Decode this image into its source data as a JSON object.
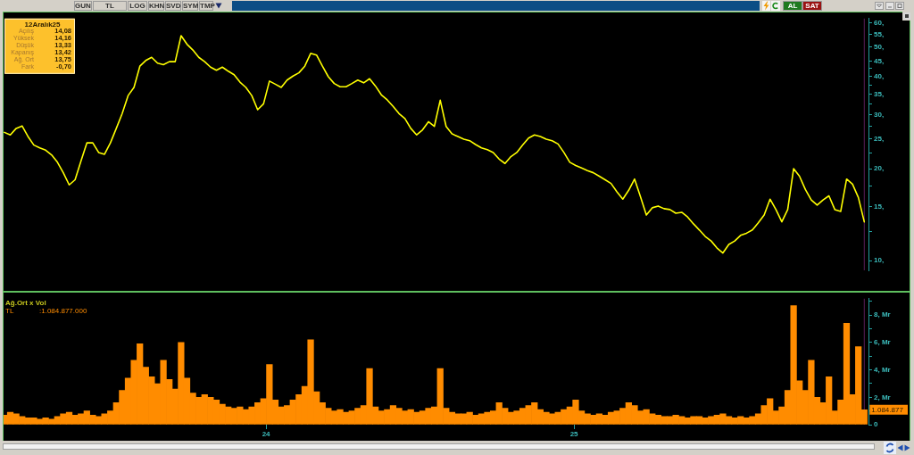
{
  "chart_data": [
    {
      "type": "other",
      "annotations": [
        "GUN",
        "TL",
        "LOG",
        "KHN",
        "SVD",
        "SYM",
        "TMP",
        "AL",
        "SAT"
      ],
      "colors": [
        "#d4d0c8",
        "#d4d0c8",
        "#d4d0c8",
        "#d4d0c8",
        "#d4d0c8",
        "#d4d0c8",
        "#d4d0c8",
        "#1f7a1f",
        "#9a1212"
      ]
    },
    {
      "type": "line",
      "color": "#ffff00",
      "log": true,
      "tick_labels": "y",
      "xlim": [
        "2023-02-23",
        "2025-12-17"
      ],
      "ylim": [
        9.3,
        62
      ],
      "yticks": [
        {
          "value": 10,
          "label": "10,"
        },
        {
          "value": 12.5,
          "label": null
        },
        {
          "value": 15,
          "label": "15,"
        },
        {
          "value": 17.5,
          "label": null
        },
        {
          "value": 20,
          "label": "20,"
        },
        {
          "value": 22.5,
          "label": null
        },
        {
          "value": 25,
          "label": "25,"
        },
        {
          "value": 27.5,
          "label": null
        },
        {
          "value": 30,
          "label": "30,"
        },
        {
          "value": 32.5,
          "label": null
        },
        {
          "value": 35,
          "label": "35,"
        },
        {
          "value": 37.5,
          "label": null
        },
        {
          "value": 40,
          "label": "40,"
        },
        {
          "value": 42.5,
          "label": null
        },
        {
          "value": 45,
          "label": "45,"
        },
        {
          "value": 50,
          "label": "50,"
        },
        {
          "value": 55,
          "label": "55,"
        },
        {
          "value": 60,
          "label": "60,"
        }
      ],
      "ref_lines": [
        {
          "axis": "x",
          "value": "2025-12-12",
          "color": "#5a1e5a"
        }
      ],
      "annotations": [
        "12Aralık25",
        "Açılış",
        "14,08",
        "Yüksek",
        "14,16",
        "Düşük",
        "13,33",
        "Kapanış",
        "13,42",
        "Ağ. Ort",
        "13,75",
        "Fark",
        "-0,70"
      ],
      "x": [
        "2023-02-24",
        "2023-03-03",
        "2023-03-10",
        "2023-03-17",
        "2023-03-24",
        "2023-03-31",
        "2023-04-07",
        "2023-04-14",
        "2023-04-21",
        "2023-04-28",
        "2023-05-05",
        "2023-05-12",
        "2023-05-19",
        "2023-05-26",
        "2023-06-02",
        "2023-06-09",
        "2023-06-16",
        "2023-06-23",
        "2023-06-30",
        "2023-07-07",
        "2023-07-14",
        "2023-07-21",
        "2023-07-28",
        "2023-08-04",
        "2023-08-11",
        "2023-08-18",
        "2023-08-25",
        "2023-09-01",
        "2023-09-08",
        "2023-09-15",
        "2023-09-22",
        "2023-09-29",
        "2023-10-06",
        "2023-10-13",
        "2023-10-20",
        "2023-10-27",
        "2023-11-03",
        "2023-11-10",
        "2023-11-17",
        "2023-11-24",
        "2023-12-01",
        "2023-12-08",
        "2023-12-15",
        "2023-12-22",
        "2023-12-29",
        "2024-01-05",
        "2024-01-12",
        "2024-01-19",
        "2024-01-26",
        "2024-02-02",
        "2024-02-09",
        "2024-02-16",
        "2024-02-23",
        "2024-03-01",
        "2024-03-08",
        "2024-03-15",
        "2024-03-22",
        "2024-03-29",
        "2024-04-05",
        "2024-04-12",
        "2024-04-19",
        "2024-04-26",
        "2024-05-03",
        "2024-05-10",
        "2024-05-17",
        "2024-05-24",
        "2024-05-31",
        "2024-06-07",
        "2024-06-14",
        "2024-06-21",
        "2024-06-28",
        "2024-07-05",
        "2024-07-12",
        "2024-07-19",
        "2024-07-26",
        "2024-08-02",
        "2024-08-09",
        "2024-08-16",
        "2024-08-23",
        "2024-08-30",
        "2024-09-06",
        "2024-09-13",
        "2024-09-20",
        "2024-09-27",
        "2024-10-04",
        "2024-10-11",
        "2024-10-18",
        "2024-10-25",
        "2024-11-01",
        "2024-11-08",
        "2024-11-15",
        "2024-11-22",
        "2024-11-29",
        "2024-12-06",
        "2024-12-13",
        "2024-12-20",
        "2024-12-27",
        "2025-01-03",
        "2025-01-10",
        "2025-01-17",
        "2025-01-24",
        "2025-01-31",
        "2025-02-07",
        "2025-02-14",
        "2025-02-21",
        "2025-02-28",
        "2025-03-07",
        "2025-03-14",
        "2025-03-21",
        "2025-03-28",
        "2025-04-04",
        "2025-04-11",
        "2025-04-18",
        "2025-04-25",
        "2025-05-02",
        "2025-05-09",
        "2025-05-16",
        "2025-05-23",
        "2025-05-30",
        "2025-06-06",
        "2025-06-13",
        "2025-06-20",
        "2025-06-27",
        "2025-07-04",
        "2025-07-11",
        "2025-07-18",
        "2025-07-25",
        "2025-08-01",
        "2025-08-08",
        "2025-08-15",
        "2025-08-22",
        "2025-08-29",
        "2025-09-05",
        "2025-09-12",
        "2025-09-19",
        "2025-09-26",
        "2025-10-03",
        "2025-10-10",
        "2025-10-17",
        "2025-10-24",
        "2025-10-31",
        "2025-11-07",
        "2025-11-14",
        "2025-11-21",
        "2025-11-28",
        "2025-12-05",
        "2025-12-12"
      ],
      "values": [
        26.3,
        25.8,
        27.1,
        27.6,
        25.5,
        23.9,
        23.4,
        23.0,
        22.2,
        21.0,
        19.4,
        17.7,
        18.4,
        21.2,
        24.3,
        24.3,
        22.6,
        22.3,
        24.3,
        27.1,
        30.3,
        34.7,
        36.9,
        43.3,
        45.2,
        46.3,
        44.3,
        43.8,
        44.8,
        44.8,
        54.5,
        51.1,
        48.9,
        46.3,
        44.8,
        43.0,
        42.0,
        43.0,
        41.7,
        40.6,
        38.4,
        36.9,
        34.7,
        31.2,
        32.6,
        38.7,
        37.8,
        36.9,
        39.0,
        40.2,
        41.2,
        43.3,
        47.7,
        47.1,
        43.3,
        40.0,
        38.0,
        37.1,
        37.1,
        38.0,
        39.0,
        38.2,
        39.4,
        37.3,
        34.9,
        33.6,
        32.0,
        30.3,
        29.2,
        27.1,
        25.8,
        26.8,
        28.5,
        27.5,
        33.5,
        27.5,
        26.0,
        25.5,
        25.0,
        24.7,
        24.0,
        23.4,
        23.1,
        22.6,
        21.5,
        20.8,
        21.9,
        22.6,
        23.9,
        25.2,
        25.8,
        25.5,
        25.0,
        24.7,
        24.1,
        22.6,
        21.0,
        20.5,
        20.1,
        19.7,
        19.4,
        18.9,
        18.4,
        17.9,
        16.8,
        15.9,
        17.0,
        18.5,
        16.2,
        14.1,
        14.9,
        15.1,
        14.8,
        14.7,
        14.3,
        14.4,
        13.9,
        13.2,
        12.6,
        12.0,
        11.6,
        11.0,
        10.6,
        11.3,
        11.6,
        12.1,
        12.3,
        12.6,
        13.3,
        14.1,
        15.9,
        14.7,
        13.4,
        14.7,
        20.0,
        18.9,
        17.1,
        15.8,
        15.2,
        15.8,
        16.3,
        14.7,
        14.5,
        18.5,
        17.8,
        16.1,
        13.4
      ]
    },
    {
      "type": "bar",
      "title": "Ağ.Ort x Vol",
      "color": "#ff8c00",
      "xlim": [
        "2023-02-23",
        "2025-12-17"
      ],
      "ylim": [
        0,
        9.2
      ],
      "xticks": [
        {
          "value": "2024-01-01",
          "label": "24"
        },
        {
          "value": "2025-01-01",
          "label": "25"
        }
      ],
      "yticks": [
        0,
        {
          "value": 1,
          "label": null
        },
        {
          "value": 2,
          "label": "2, Mr"
        },
        {
          "value": 3,
          "label": null
        },
        {
          "value": 4,
          "label": "4, Mr"
        },
        {
          "value": 5,
          "label": null
        },
        {
          "value": 6,
          "label": "6, Mr"
        },
        {
          "value": 7,
          "label": null
        },
        {
          "value": 8,
          "label": "8, Mr"
        },
        {
          "value": 9,
          "label": null
        }
      ],
      "ref_lines": [
        {
          "axis": "x",
          "value": "2025-12-12",
          "color": "#5a1e5a"
        }
      ],
      "annotations": [
        "TL",
        ":1.084.877.000",
        {
          "text": "1.084.877",
          "x": "2025-12-12",
          "y": 1.084877
        }
      ],
      "x": [
        "2023-02-24",
        "2023-03-03",
        "2023-03-10",
        "2023-03-17",
        "2023-03-24",
        "2023-03-31",
        "2023-04-07",
        "2023-04-14",
        "2023-04-21",
        "2023-04-28",
        "2023-05-05",
        "2023-05-12",
        "2023-05-19",
        "2023-05-26",
        "2023-06-02",
        "2023-06-09",
        "2023-06-16",
        "2023-06-23",
        "2023-06-30",
        "2023-07-07",
        "2023-07-14",
        "2023-07-21",
        "2023-07-28",
        "2023-08-04",
        "2023-08-11",
        "2023-08-18",
        "2023-08-25",
        "2023-09-01",
        "2023-09-08",
        "2023-09-15",
        "2023-09-22",
        "2023-09-29",
        "2023-10-06",
        "2023-10-13",
        "2023-10-20",
        "2023-10-27",
        "2023-11-03",
        "2023-11-10",
        "2023-11-17",
        "2023-11-24",
        "2023-12-01",
        "2023-12-08",
        "2023-12-15",
        "2023-12-22",
        "2023-12-29",
        "2024-01-05",
        "2024-01-12",
        "2024-01-19",
        "2024-01-26",
        "2024-02-02",
        "2024-02-09",
        "2024-02-16",
        "2024-02-23",
        "2024-03-01",
        "2024-03-08",
        "2024-03-15",
        "2024-03-22",
        "2024-03-29",
        "2024-04-05",
        "2024-04-12",
        "2024-04-19",
        "2024-04-26",
        "2024-05-03",
        "2024-05-10",
        "2024-05-17",
        "2024-05-24",
        "2024-05-31",
        "2024-06-07",
        "2024-06-14",
        "2024-06-21",
        "2024-06-28",
        "2024-07-05",
        "2024-07-12",
        "2024-07-19",
        "2024-07-26",
        "2024-08-02",
        "2024-08-09",
        "2024-08-16",
        "2024-08-23",
        "2024-08-30",
        "2024-09-06",
        "2024-09-13",
        "2024-09-20",
        "2024-09-27",
        "2024-10-04",
        "2024-10-11",
        "2024-10-18",
        "2024-10-25",
        "2024-11-01",
        "2024-11-08",
        "2024-11-15",
        "2024-11-22",
        "2024-11-29",
        "2024-12-06",
        "2024-12-13",
        "2024-12-20",
        "2024-12-27",
        "2025-01-03",
        "2025-01-10",
        "2025-01-17",
        "2025-01-24",
        "2025-01-31",
        "2025-02-07",
        "2025-02-14",
        "2025-02-21",
        "2025-02-28",
        "2025-03-07",
        "2025-03-14",
        "2025-03-21",
        "2025-03-28",
        "2025-04-04",
        "2025-04-11",
        "2025-04-18",
        "2025-04-25",
        "2025-05-02",
        "2025-05-09",
        "2025-05-16",
        "2025-05-23",
        "2025-05-30",
        "2025-06-06",
        "2025-06-13",
        "2025-06-20",
        "2025-06-27",
        "2025-07-04",
        "2025-07-11",
        "2025-07-18",
        "2025-07-25",
        "2025-08-01",
        "2025-08-08",
        "2025-08-15",
        "2025-08-22",
        "2025-08-29",
        "2025-09-05",
        "2025-09-12",
        "2025-09-19",
        "2025-09-26",
        "2025-10-03",
        "2025-10-10",
        "2025-10-17",
        "2025-10-24",
        "2025-10-31",
        "2025-11-07",
        "2025-11-14",
        "2025-11-21",
        "2025-11-28",
        "2025-12-05",
        "2025-12-12"
      ],
      "values": [
        0.7,
        0.9,
        0.8,
        0.6,
        0.5,
        0.5,
        0.4,
        0.5,
        0.4,
        0.6,
        0.8,
        0.9,
        0.7,
        0.8,
        1.0,
        0.7,
        0.6,
        0.8,
        1.0,
        1.6,
        2.5,
        3.4,
        4.7,
        5.9,
        4.2,
        3.5,
        3.0,
        4.7,
        3.3,
        2.6,
        6.0,
        3.4,
        2.3,
        2.0,
        2.2,
        2.0,
        1.8,
        1.5,
        1.3,
        1.2,
        1.3,
        1.1,
        1.3,
        1.6,
        1.9,
        4.4,
        1.8,
        1.3,
        1.4,
        1.8,
        2.2,
        2.8,
        6.2,
        2.4,
        1.6,
        1.2,
        1.0,
        1.1,
        0.9,
        1.0,
        1.2,
        1.4,
        4.1,
        1.3,
        1.0,
        1.1,
        1.4,
        1.2,
        1.0,
        1.1,
        0.9,
        1.0,
        1.2,
        1.3,
        4.1,
        1.2,
        0.9,
        0.8,
        0.8,
        0.9,
        0.7,
        0.8,
        0.9,
        1.0,
        1.6,
        1.2,
        0.9,
        1.0,
        1.2,
        1.4,
        1.6,
        1.1,
        0.9,
        0.8,
        0.9,
        1.1,
        1.3,
        1.8,
        1.0,
        0.8,
        0.7,
        0.8,
        0.7,
        0.9,
        1.0,
        1.2,
        1.6,
        1.4,
        1.0,
        1.1,
        0.8,
        0.7,
        0.6,
        0.6,
        0.7,
        0.6,
        0.5,
        0.6,
        0.6,
        0.5,
        0.6,
        0.7,
        0.8,
        0.6,
        0.5,
        0.6,
        0.5,
        0.6,
        0.8,
        1.4,
        1.9,
        1.0,
        1.3,
        2.5,
        8.7,
        3.2,
        2.5,
        4.7,
        2.0,
        1.6,
        3.5,
        1.0,
        1.8,
        7.4,
        2.2,
        5.7,
        1.084877
      ]
    }
  ]
}
